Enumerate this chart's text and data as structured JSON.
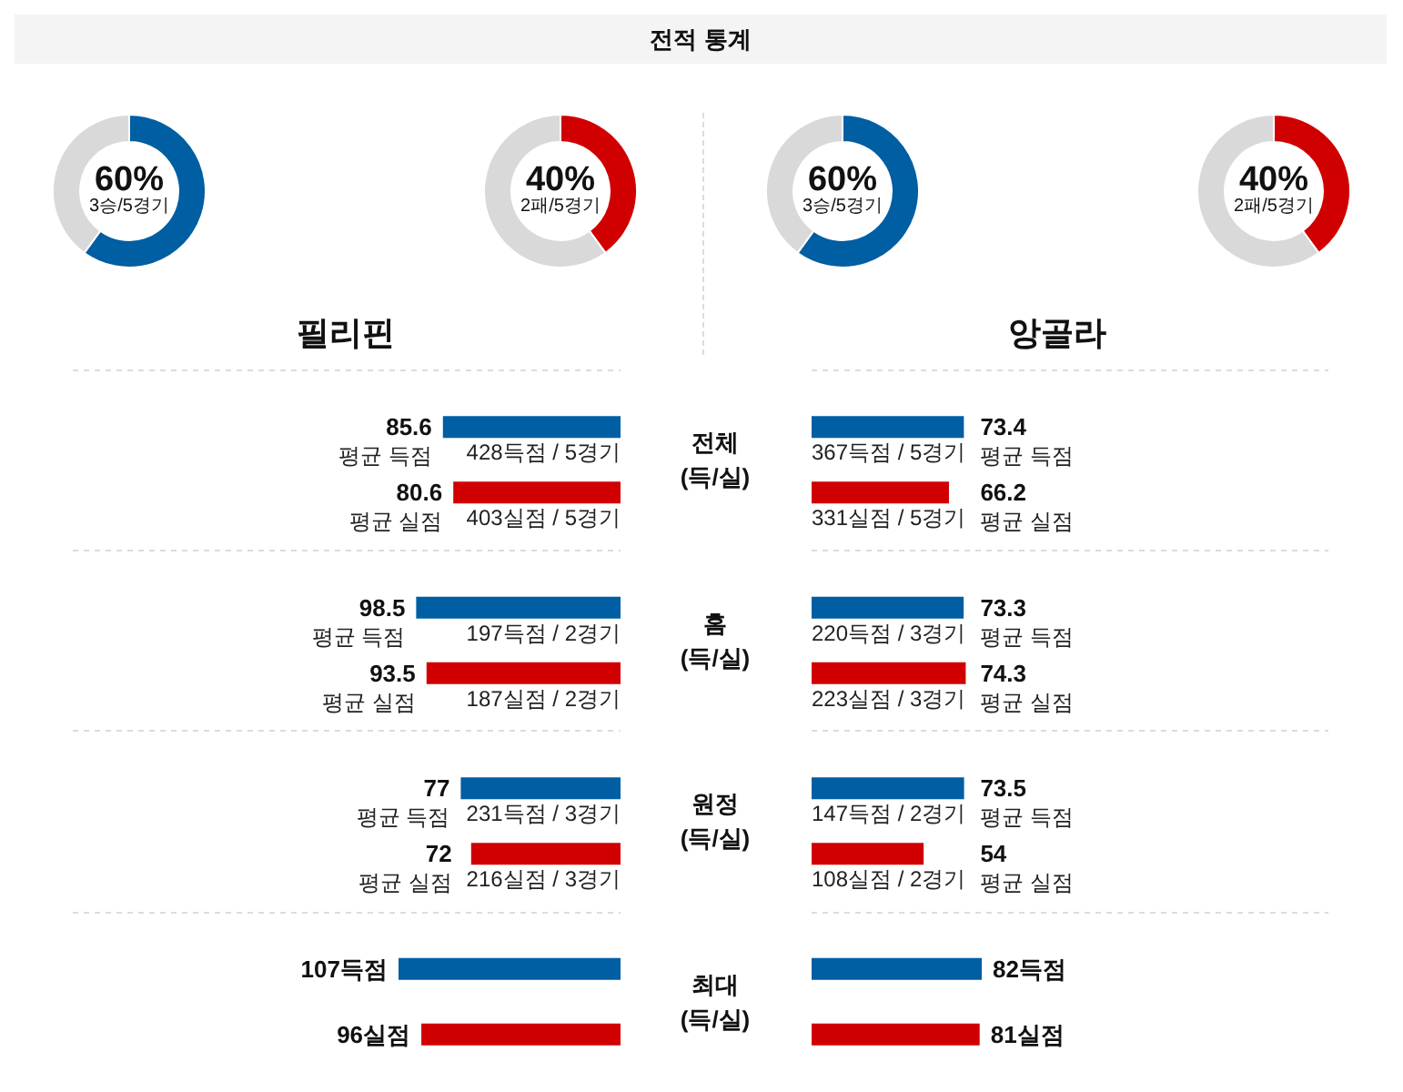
{
  "chart_data": [
    {
      "type": "other",
      "title": "전적 통계"
    },
    {
      "type": "donut",
      "categories": [
        null,
        null
      ],
      "values": [
        60,
        40
      ],
      "colors": [
        "#005ea3",
        "#d9d9d9"
      ],
      "annotations": [
        "60%",
        "3승/5경기"
      ]
    },
    {
      "type": "donut",
      "categories": [
        null,
        null
      ],
      "values": [
        40,
        60
      ],
      "colors": [
        "#d10000",
        "#d9d9d9"
      ],
      "annotations": [
        "40%",
        "2패/5경기"
      ]
    },
    {
      "type": "donut",
      "categories": [
        null,
        null
      ],
      "values": [
        60,
        40
      ],
      "colors": [
        "#005ea3",
        "#d9d9d9"
      ],
      "annotations": [
        "60%",
        "3승/5경기"
      ]
    },
    {
      "type": "donut",
      "categories": [
        null,
        null
      ],
      "values": [
        40,
        60
      ],
      "colors": [
        "#d10000",
        "#d9d9d9"
      ],
      "annotations": [
        "40%",
        "2패/5경기"
      ]
    },
    {
      "type": "other",
      "title": "필리핀"
    },
    {
      "type": "other",
      "title": "앙골라"
    },
    {
      "type": "bar",
      "orientation": "horizontal",
      "categories": [
        "전체\n(득/실)",
        "홈\n(득/실)",
        "원정\n(득/실)",
        "최대\n(득/실)"
      ],
      "tick_labels": "y",
      "grid": "y",
      "series": [
        {
          "color": "#005ea3",
          "values": [
            85.6,
            98.5,
            77,
            107
          ],
          "value_labels": [
            "85.6\n평균 득점",
            "98.5\n평균 득점",
            "77\n평균 득점",
            "107득점"
          ]
        },
        {
          "color": "#d10000",
          "values": [
            80.6,
            93.5,
            72,
            96
          ],
          "value_labels": [
            "80.6\n평균 실점",
            "93.5\n평균 실점",
            "72\n평균 실점",
            "96실점"
          ]
        }
      ],
      "annotations": [
        "428득점 / 5경기",
        "403실점 / 5경기",
        "197득점 / 2경기",
        "187실점 / 2경기",
        "231득점 / 3경기",
        "216실점 / 3경기"
      ]
    },
    {
      "type": "bar",
      "orientation": "horizontal",
      "categories": [
        null,
        null,
        null,
        null
      ],
      "tick_labels": false,
      "grid": "y",
      "series": [
        {
          "color": "#005ea3",
          "values": [
            73.4,
            73.3,
            73.5,
            82
          ],
          "value_labels": [
            "73.4\n평균 득점",
            "73.3\n평균 득점",
            "73.5\n평균 득점",
            "82득점"
          ]
        },
        {
          "color": "#d10000",
          "values": [
            66.2,
            74.3,
            54,
            81
          ],
          "value_labels": [
            "66.2\n평균 실점",
            "74.3\n평균 실점",
            "54\n평균 실점",
            "81실점"
          ]
        }
      ],
      "annotations": [
        "367득점 / 5경기",
        "331실점 / 5경기",
        "220득점 / 3경기",
        "223실점 / 3경기",
        "147득점 / 2경기",
        "108실점 / 2경기"
      ]
    }
  ]
}
